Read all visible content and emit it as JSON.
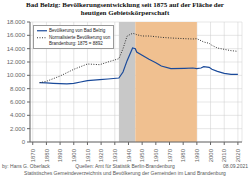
{
  "chart_data": {
    "type": "line",
    "title": "Bad Belzig: Bevölkerungsentwicklung seit 1875 auf der Fläche der\nheutigen Gebietskörperschaft",
    "annotations": [
      "by: Hans G. Oberlack",
      "Quellen: Amt für Statistik Berlin-Brandenburg",
      "Statistisches Gemeindeverzeichnis und Bevölkerung der Gemeinden im Land Brandenburg",
      "08.09.2021"
    ],
    "x": [
      1875,
      1880,
      1885,
      1890,
      1895,
      1900,
      1905,
      1910,
      1919,
      1925,
      1933,
      1936,
      1939,
      1943,
      1945,
      1946,
      1950,
      1955,
      1960,
      1964,
      1971,
      1981,
      1987,
      1990,
      1993,
      1995,
      1999,
      2001,
      2005,
      2010,
      2015,
      2020
    ],
    "series": [
      {
        "name": "Bevölkerung von Bad Belzig",
        "color": "#1a4a9a",
        "line_style": "solid",
        "values": [
          8892,
          8870,
          8800,
          8750,
          8720,
          8800,
          9000,
          9200,
          9350,
          9450,
          9600,
          10500,
          12200,
          14100,
          14000,
          13500,
          13000,
          12400,
          11900,
          11400,
          11000,
          11050,
          11100,
          11000,
          11100,
          11300,
          11200,
          10900,
          10600,
          10300,
          10150,
          10150
        ]
      },
      {
        "name": "Normalisierte Bevölkerung von\nBrandenburg: 1875 = 8892",
        "color": "#333333",
        "line_style": "dotted",
        "values": [
          8892,
          9100,
          9500,
          9900,
          10400,
          10900,
          11300,
          11700,
          11600,
          12000,
          12500,
          14000,
          15900,
          16300,
          16200,
          16100,
          15900,
          15900,
          15800,
          15700,
          15600,
          15500,
          15450,
          15500,
          15200,
          15000,
          14800,
          14500,
          14100,
          13900,
          13700,
          13600
        ]
      }
    ],
    "spans": [
      {
        "x0": 1933,
        "x1": 1945,
        "color": "#c8c8c8"
      },
      {
        "x0": 1945,
        "x1": 1990,
        "color": "#f0c090"
      }
    ],
    "xlim": [
      1868,
      2023
    ],
    "xticks": [
      1870,
      1880,
      1890,
      1900,
      1910,
      1920,
      1930,
      1940,
      1950,
      1960,
      1970,
      1980,
      1990,
      2000,
      2010,
      2020
    ],
    "ylim": [
      0,
      18000
    ],
    "yticks": [
      0,
      {
        "value": 2000,
        "label": "2.000"
      },
      {
        "value": 4000,
        "label": "4.000"
      },
      {
        "value": 6000,
        "label": "6.000"
      },
      {
        "value": 8000,
        "label": "8.000"
      },
      {
        "value": 10000,
        "label": "10.000"
      },
      {
        "value": 12000,
        "label": "12.000"
      },
      {
        "value": 14000,
        "label": "14.000"
      },
      {
        "value": 16000,
        "label": "16.000"
      },
      {
        "value": 18000,
        "label": "18.000"
      }
    ],
    "grid": true,
    "legend": "upper left"
  }
}
